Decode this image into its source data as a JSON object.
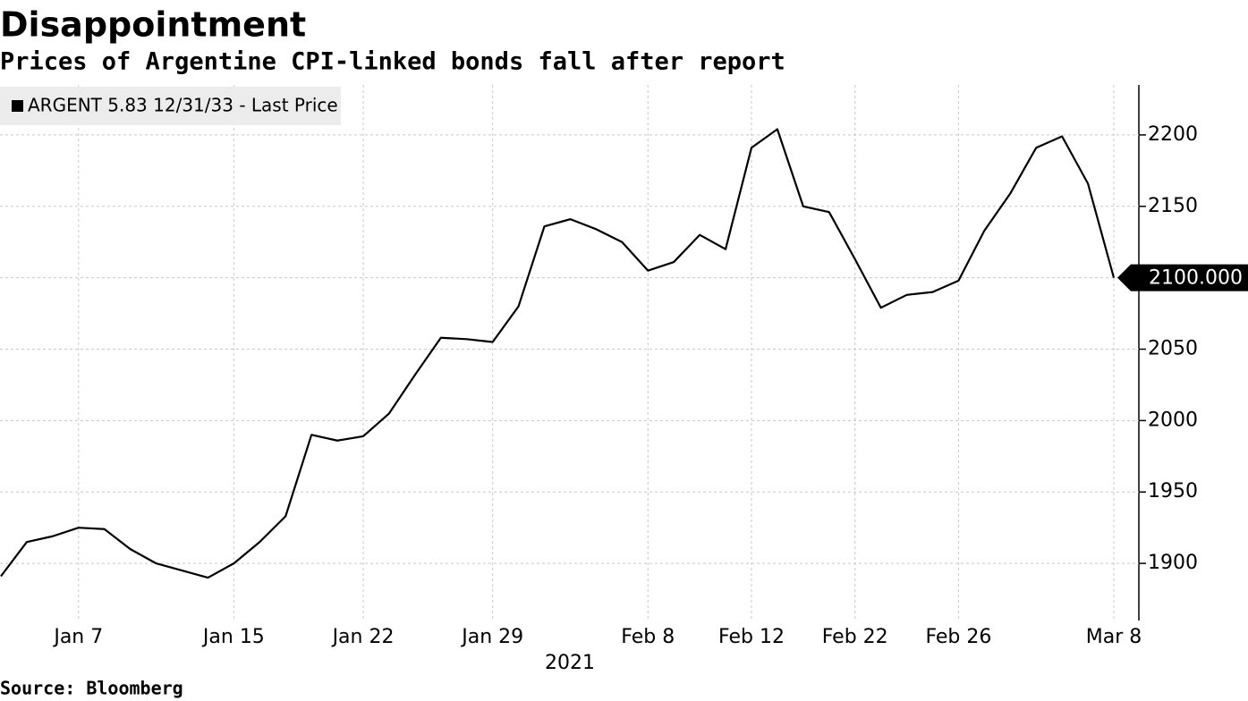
{
  "chart_data": {
    "type": "line",
    "title": "Disappointment",
    "subtitle": "Prices of Argentine CPI-linked bonds fall after report",
    "source": "Source: Bloomberg",
    "x_label": "2021",
    "categories": [
      null,
      null,
      null,
      "Jan 7",
      null,
      null,
      null,
      null,
      null,
      "Jan 15",
      null,
      null,
      null,
      null,
      "Jan 22",
      null,
      null,
      null,
      null,
      "Jan 29",
      null,
      null,
      null,
      null,
      null,
      "Feb 8",
      null,
      null,
      null,
      "Feb 12",
      null,
      null,
      null,
      "Feb 22",
      null,
      null,
      null,
      "Feb 26",
      null,
      null,
      null,
      null,
      null,
      "Mar 8"
    ],
    "series": [
      {
        "name": "ARGENT 5.83 12/31/33 - Last Price",
        "color": "#000000",
        "values": [
          1891,
          1915,
          1919,
          1925,
          1924,
          1910,
          1900,
          1895,
          1890,
          1900,
          1915,
          1933,
          1990,
          1986,
          1989,
          2005,
          2032,
          2058,
          2057,
          2055,
          2080,
          2136,
          2141,
          2134,
          2125,
          2105,
          2111,
          2130,
          2120,
          2191,
          2204,
          2150,
          2146,
          2113,
          2079,
          2088,
          2090,
          2098,
          2133,
          2159,
          2191,
          2199,
          2166,
          2100
        ],
        "value_labels": [
          null,
          null,
          null,
          null,
          null,
          null,
          null,
          null,
          null,
          null,
          null,
          null,
          null,
          null,
          null,
          null,
          null,
          null,
          null,
          null,
          null,
          null,
          null,
          null,
          null,
          null,
          null,
          null,
          null,
          null,
          null,
          null,
          null,
          null,
          null,
          null,
          null,
          null,
          null,
          null,
          null,
          null,
          null,
          "2100.000"
        ]
      }
    ],
    "ylim": [
      1860,
      2235
    ],
    "yticks": [
      1900,
      1950,
      2000,
      2050,
      2100,
      2150,
      2200
    ],
    "grid": true,
    "legend": "top-left"
  }
}
